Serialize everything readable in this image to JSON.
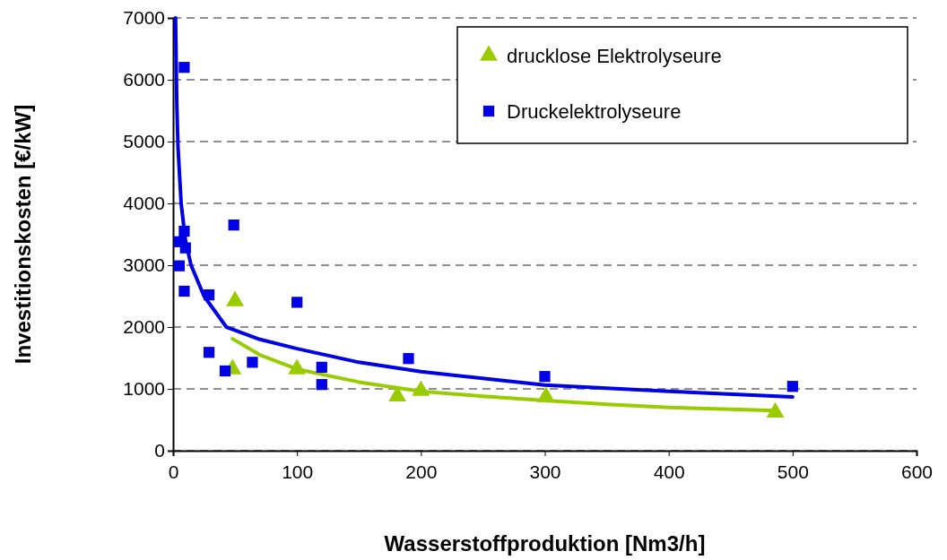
{
  "chart_data": {
    "type": "scatter",
    "xlabel": "Wasserstoffproduktion [Nm3/h]",
    "ylabel": "Investitionskosten [€/kW]",
    "xlim": [
      0,
      600
    ],
    "xticks": [
      0,
      100,
      200,
      300,
      400,
      500,
      600
    ],
    "ylim": [
      0,
      7000
    ],
    "yticks": [
      0,
      1000,
      2000,
      3000,
      4000,
      5000,
      6000,
      7000
    ],
    "grid": "y",
    "legend": "top right",
    "series": [
      {
        "name": "drucklose Elektrolyseure",
        "marker": "triangle",
        "color": "#99cc00",
        "x": [
          50,
          48,
          100,
          181,
          200,
          301,
          486
        ],
        "values": [
          2420,
          1320,
          1320,
          880,
          970,
          870,
          620
        ]
      },
      {
        "name": "Druckelektrolyseure",
        "marker": "square",
        "color": "#0000e6",
        "x": [
          9,
          49,
          9,
          5,
          10,
          5,
          9,
          29,
          29,
          42,
          64,
          100,
          120,
          120,
          190,
          300,
          500
        ],
        "values": [
          6200,
          3650,
          3550,
          3380,
          3280,
          2990,
          2580,
          2520,
          1590,
          1290,
          1430,
          2400,
          1350,
          1070,
          1490,
          1200,
          1040
        ]
      },
      {
        "type": "line",
        "color": "#99cc00",
        "x": [
          48,
          70,
          100,
          150,
          200,
          250,
          300,
          350,
          400,
          450,
          486
        ],
        "values": [
          1810,
          1550,
          1320,
          1110,
          960,
          880,
          810,
          750,
          700,
          670,
          650
        ]
      },
      {
        "type": "line",
        "color": "#0000e6",
        "x": [
          2,
          3,
          4,
          6.5,
          10,
          14.5,
          25,
          43,
          70,
          100,
          150,
          200,
          300,
          400,
          500
        ],
        "values": [
          7000,
          5600,
          4900,
          4000,
          3400,
          3000,
          2500,
          2000,
          1800,
          1650,
          1430,
          1280,
          1060,
          960,
          870
        ]
      }
    ]
  }
}
